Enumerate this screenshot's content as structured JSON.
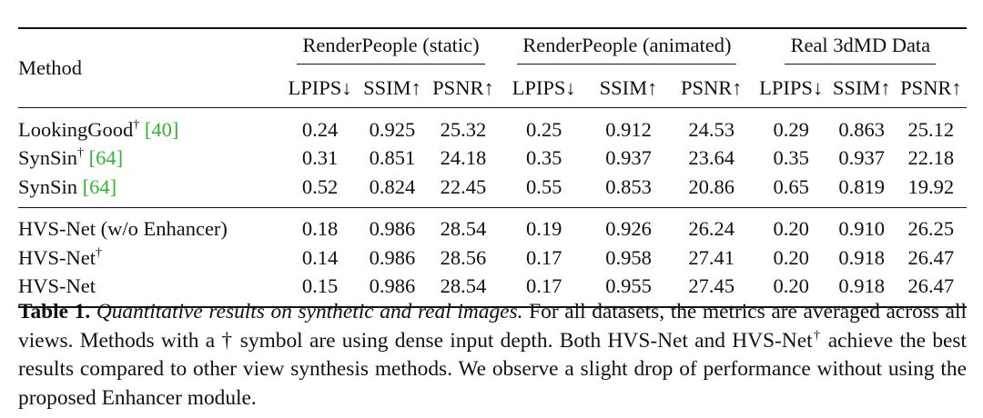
{
  "table": {
    "method_header": "Method",
    "groups": [
      {
        "name": "RenderPeople (static)",
        "metrics": [
          "LPIPS↓",
          "SSIM↑",
          "PSNR↑"
        ]
      },
      {
        "name": "RenderPeople (animated)",
        "metrics": [
          "LPIPS↓",
          "SSIM↑",
          "PSNR↑"
        ]
      },
      {
        "name": "Real 3dMD Data",
        "metrics": [
          "LPIPS↓",
          "SSIM↑",
          "PSNR↑"
        ]
      }
    ],
    "rows": [
      {
        "method": "LookingGood",
        "dagger": true,
        "ref": "[40]",
        "section": 1,
        "values": [
          "0.24",
          "0.925",
          "25.32",
          "0.25",
          "0.912",
          "24.53",
          "0.29",
          "0.863",
          "25.12"
        ],
        "bold": [
          false,
          false,
          false,
          false,
          false,
          false,
          false,
          false,
          false
        ]
      },
      {
        "method": "SynSin",
        "dagger": true,
        "ref": "[64]",
        "section": 1,
        "values": [
          "0.31",
          "0.851",
          "24.18",
          "0.35",
          "0.937",
          "23.64",
          "0.35",
          "0.937",
          "22.18"
        ],
        "bold": [
          false,
          false,
          false,
          false,
          false,
          false,
          false,
          false,
          false
        ]
      },
      {
        "method": "SynSin",
        "dagger": false,
        "ref": "[64]",
        "section": 1,
        "values": [
          "0.52",
          "0.824",
          "22.45",
          "0.55",
          "0.853",
          "20.86",
          "0.65",
          "0.819",
          "19.92"
        ],
        "bold": [
          false,
          false,
          false,
          false,
          false,
          false,
          false,
          false,
          false
        ]
      },
      {
        "method": "HVS-Net (w/o Enhancer)",
        "dagger": false,
        "ref": "",
        "section": 2,
        "values": [
          "0.18",
          "0.986",
          "28.54",
          "0.19",
          "0.926",
          "26.24",
          "0.20",
          "0.910",
          "26.25"
        ],
        "bold": [
          false,
          false,
          false,
          false,
          false,
          false,
          false,
          false,
          false
        ]
      },
      {
        "method": "HVS-Net",
        "dagger": true,
        "ref": "",
        "section": 2,
        "values": [
          "0.14",
          "0.986",
          "28.56",
          "0.17",
          "0.958",
          "27.41",
          "0.20",
          "0.918",
          "26.47"
        ],
        "bold": [
          true,
          true,
          true,
          true,
          true,
          false,
          true,
          true,
          true
        ]
      },
      {
        "method": "HVS-Net",
        "dagger": false,
        "ref": "",
        "section": 2,
        "values": [
          "0.15",
          "0.986",
          "28.54",
          "0.17",
          "0.955",
          "27.45",
          "0.20",
          "0.918",
          "26.47"
        ],
        "bold": [
          false,
          true,
          false,
          true,
          false,
          true,
          true,
          true,
          true
        ]
      }
    ]
  },
  "caption": {
    "label": "Table 1.",
    "title": "Quantitative results on synthetic and real images.",
    "text_1": "For all datasets, the metrics are averaged across all views. Methods with a † symbol are using dense input depth. Both HVS-Net and HVS-Net",
    "dagger": "†",
    "text_2": "achieve the best results compared to other view synthesis methods. We observe a slight drop of performance without using the proposed Enhancer module."
  }
}
